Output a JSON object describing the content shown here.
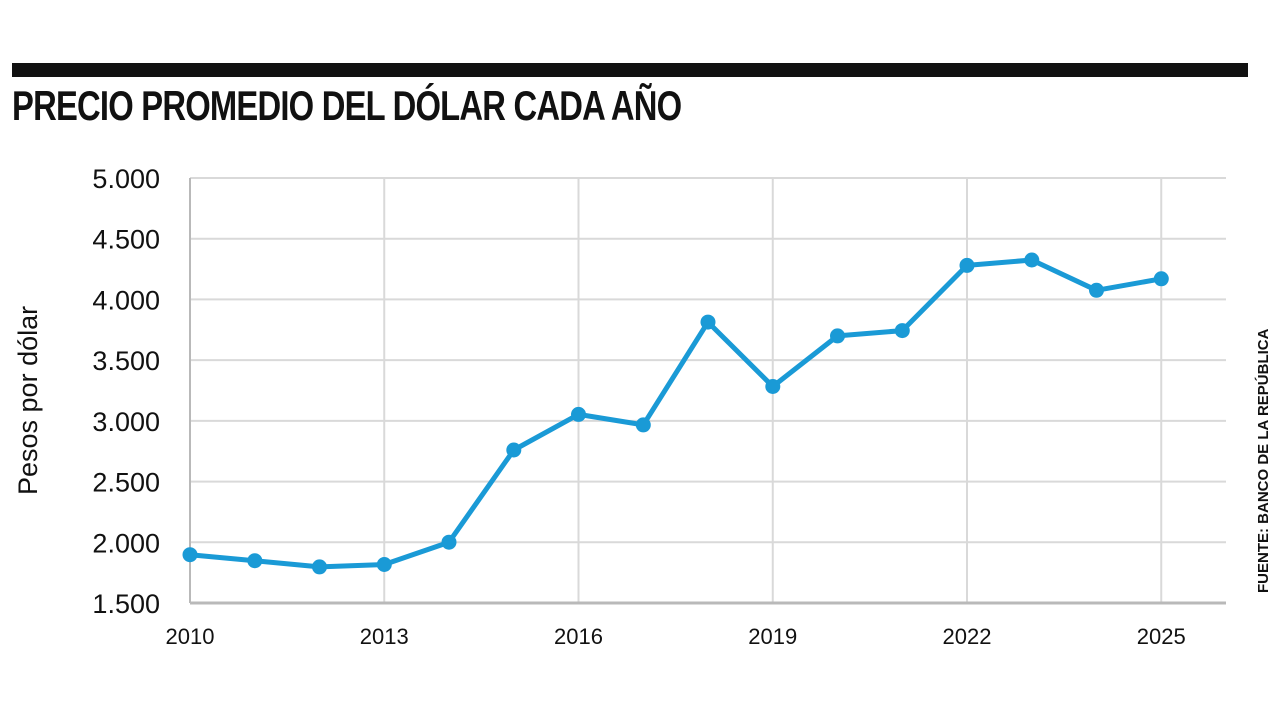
{
  "chart_data": {
    "type": "line",
    "title": "PRECIO PROMEDIO DEL DÓLAR CADA AÑO",
    "xlabel": "",
    "ylabel": "Pesos por dólar",
    "source": "FUENTE: BANCO DE LA REPÚBLICA",
    "x": [
      2010,
      2011,
      2012,
      2013,
      2014,
      2015,
      2016,
      2017,
      2018,
      2019,
      2020,
      2021,
      2022,
      2023,
      2024,
      2025
    ],
    "series": [
      {
        "name": "Precio promedio del dólar",
        "values": [
          1898,
          1848,
          1797,
          1817,
          2001,
          2760,
          3053,
          2967,
          3813,
          3283,
          3700,
          3743,
          4280,
          4325,
          4075,
          4170
        ]
      }
    ],
    "xticks": [
      "2010",
      "2013",
      "2016",
      "2019",
      "2022",
      "2025"
    ],
    "yticks": [
      "1.500",
      "2.000",
      "2.500",
      "3.000",
      "3.500",
      "4.000",
      "4.500",
      "5.000"
    ],
    "ylim": [
      1500,
      5000
    ],
    "xlim": [
      2010,
      2026
    ],
    "grid": true,
    "line_color": "#1a9ad6",
    "rule_color": "#111111",
    "grid_color": "#d9d9d9"
  }
}
